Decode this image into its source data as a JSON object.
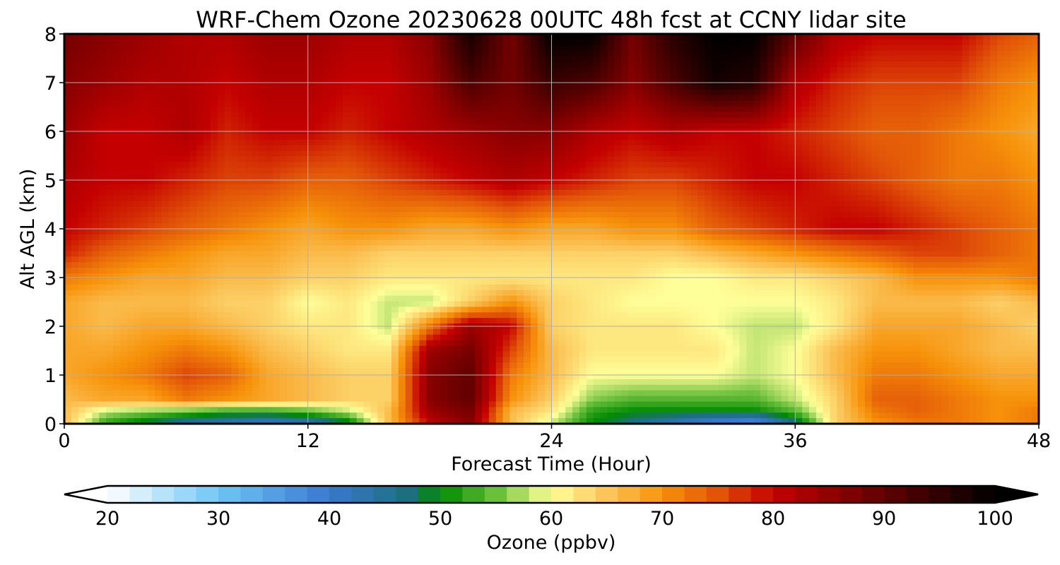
{
  "chart_data": {
    "type": "heatmap",
    "title": "WRF-Chem Ozone  20230628 00UTC 48h fcst at CCNY lidar site",
    "xlabel": "Forecast Time (Hour)",
    "ylabel": "Alt AGL (km)",
    "xlim": [
      0,
      48
    ],
    "ylim": [
      0,
      8
    ],
    "x_ticks": [
      0,
      12,
      24,
      36,
      48
    ],
    "y_ticks": [
      0,
      1,
      2,
      3,
      4,
      5,
      6,
      7,
      8
    ],
    "grid": true,
    "x": [
      0,
      2,
      4,
      6,
      8,
      10,
      12,
      14,
      16,
      18,
      20,
      22,
      24,
      26,
      28,
      30,
      32,
      34,
      36,
      38,
      40,
      42,
      44,
      46,
      48
    ],
    "y": [
      0,
      0.25,
      0.5,
      1,
      1.5,
      2,
      2.5,
      3,
      3.5,
      4,
      5,
      6,
      7,
      8
    ],
    "z": [
      [
        66,
        52,
        48,
        44,
        42,
        40,
        42,
        48,
        66,
        80,
        86,
        66,
        58,
        50,
        46,
        42,
        38,
        36,
        46,
        64,
        70,
        72,
        72,
        70,
        72
      ],
      [
        66,
        58,
        56,
        54,
        52,
        52,
        54,
        58,
        66,
        84,
        88,
        66,
        62,
        52,
        50,
        50,
        50,
        50,
        54,
        64,
        72,
        74,
        72,
        70,
        72
      ],
      [
        66,
        68,
        68,
        72,
        70,
        68,
        66,
        64,
        64,
        86,
        90,
        70,
        64,
        56,
        54,
        54,
        54,
        54,
        58,
        64,
        74,
        74,
        72,
        70,
        70
      ],
      [
        68,
        70,
        72,
        76,
        74,
        68,
        66,
        64,
        64,
        86,
        90,
        72,
        66,
        60,
        60,
        60,
        60,
        58,
        60,
        66,
        72,
        72,
        70,
        68,
        68
      ],
      [
        68,
        68,
        70,
        72,
        70,
        66,
        64,
        62,
        62,
        84,
        88,
        76,
        66,
        62,
        62,
        62,
        62,
        58,
        60,
        66,
        70,
        70,
        68,
        66,
        66
      ],
      [
        68,
        66,
        68,
        68,
        66,
        64,
        62,
        62,
        58,
        72,
        84,
        80,
        64,
        62,
        62,
        62,
        60,
        58,
        58,
        62,
        68,
        68,
        68,
        66,
        64
      ],
      [
        68,
        66,
        66,
        66,
        64,
        64,
        60,
        62,
        58,
        58,
        64,
        70,
        64,
        62,
        60,
        60,
        60,
        60,
        60,
        62,
        66,
        66,
        66,
        64,
        66
      ],
      [
        72,
        70,
        68,
        68,
        66,
        66,
        64,
        64,
        62,
        62,
        62,
        62,
        62,
        62,
        62,
        60,
        60,
        62,
        62,
        64,
        66,
        70,
        70,
        70,
        72
      ],
      [
        78,
        74,
        72,
        70,
        68,
        68,
        66,
        66,
        64,
        64,
        64,
        64,
        64,
        64,
        64,
        64,
        66,
        68,
        70,
        72,
        74,
        76,
        76,
        74,
        72
      ],
      [
        80,
        78,
        76,
        74,
        72,
        70,
        68,
        70,
        70,
        68,
        68,
        70,
        68,
        68,
        70,
        70,
        74,
        76,
        78,
        80,
        80,
        78,
        76,
        74,
        72
      ],
      [
        82,
        80,
        80,
        78,
        76,
        76,
        74,
        74,
        76,
        78,
        80,
        82,
        80,
        78,
        76,
        76,
        78,
        80,
        80,
        78,
        76,
        74,
        72,
        72,
        70
      ],
      [
        84,
        80,
        80,
        82,
        78,
        80,
        80,
        78,
        80,
        82,
        84,
        86,
        86,
        82,
        80,
        82,
        80,
        80,
        78,
        76,
        74,
        74,
        72,
        70,
        68
      ],
      [
        86,
        84,
        82,
        82,
        80,
        82,
        82,
        80,
        80,
        84,
        92,
        88,
        94,
        92,
        86,
        92,
        98,
        96,
        82,
        78,
        76,
        76,
        76,
        72,
        70
      ],
      [
        88,
        86,
        84,
        82,
        82,
        84,
        84,
        82,
        82,
        86,
        98,
        88,
        100,
        100,
        88,
        96,
        100,
        100,
        90,
        82,
        80,
        80,
        80,
        76,
        74
      ]
    ],
    "colorbar": {
      "label": "Ozone  (ppbv)",
      "vmin": 20,
      "vmax": 100,
      "ticks": [
        20,
        30,
        40,
        50,
        60,
        70,
        80,
        90,
        100
      ],
      "extend": "both",
      "stops": [
        {
          "v": 20,
          "c": "#ffffff"
        },
        {
          "v": 30,
          "c": "#6ec6f5"
        },
        {
          "v": 40,
          "c": "#3a78d0"
        },
        {
          "v": 47,
          "c": "#1d6f7f"
        },
        {
          "v": 50,
          "c": "#008a00"
        },
        {
          "v": 55,
          "c": "#6abf3d"
        },
        {
          "v": 60,
          "c": "#ffff99"
        },
        {
          "v": 65,
          "c": "#fbc55a"
        },
        {
          "v": 70,
          "c": "#f7920a"
        },
        {
          "v": 75,
          "c": "#e25408"
        },
        {
          "v": 80,
          "c": "#c40000"
        },
        {
          "v": 90,
          "c": "#600000"
        },
        {
          "v": 100,
          "c": "#000000"
        }
      ]
    }
  }
}
